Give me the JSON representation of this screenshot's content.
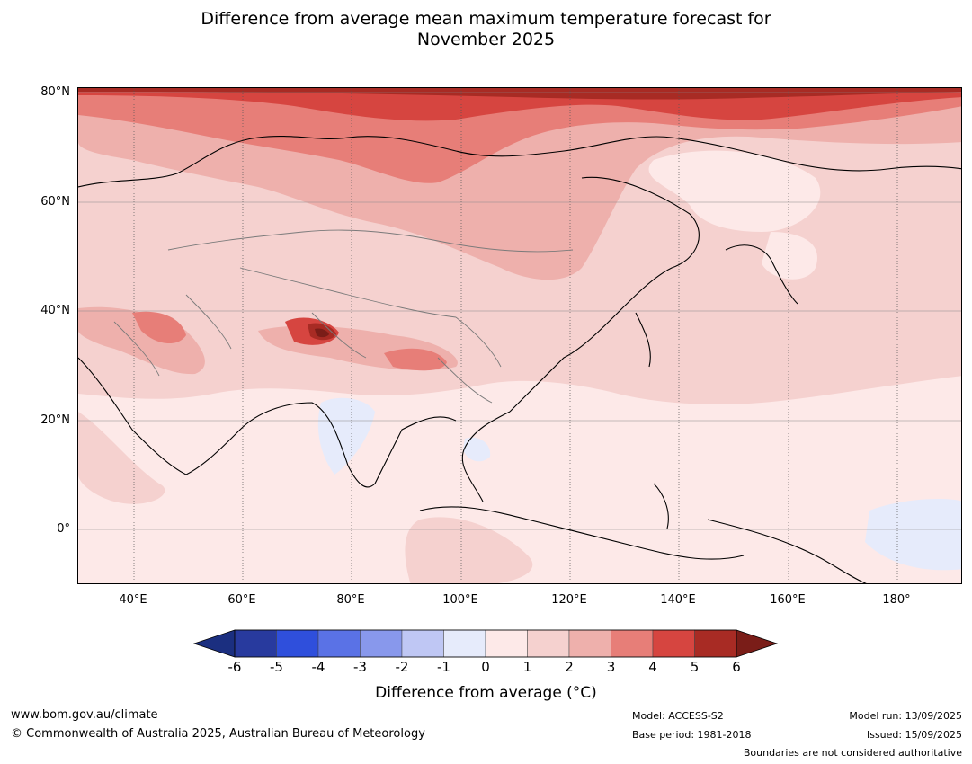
{
  "title": {
    "line1": "Difference from average mean maximum temperature forecast for",
    "line2": "November 2025"
  },
  "axes": {
    "lat_labels": [
      "80°N",
      "60°N",
      "40°N",
      "20°N",
      "0°"
    ],
    "lon_labels": [
      "40°E",
      "60°E",
      "80°E",
      "100°E",
      "120°E",
      "140°E",
      "160°E",
      "180°"
    ]
  },
  "colorbar": {
    "ticks": [
      "-6",
      "-5",
      "-4",
      "-3",
      "-2",
      "-1",
      "0",
      "1",
      "2",
      "3",
      "4",
      "5",
      "6"
    ],
    "colors": [
      "#283a9e",
      "#2f4fdc",
      "#5a72e6",
      "#8898ec",
      "#bfc7f4",
      "#e6ebfb",
      "#fde9e8",
      "#f5d1cf",
      "#eeb0ac",
      "#e77e78",
      "#d64540",
      "#a82b24"
    ],
    "extend_low_color": "#1b2f80",
    "extend_high_color": "#7a1d18",
    "label": "Difference from average (°C)"
  },
  "footer": {
    "url": "www.bom.gov.au/climate",
    "copyright": "© Commonwealth of Australia 2025, Australian Bureau of Meteorology",
    "model": "Model: ACCESS-S2",
    "base_period": "Base period: 1981-2018",
    "model_run": "Model run: 13/09/2025",
    "issued": "Issued: 15/09/2025",
    "disclaimer": "Boundaries are not considered authoritative"
  }
}
